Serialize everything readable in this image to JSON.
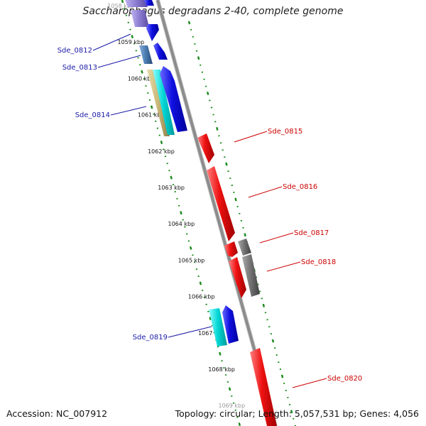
{
  "title": "Saccharophagus degradans 2-40, complete genome",
  "footer": {
    "accession": "Accession: NC_007912",
    "summary": "Topology: circular; Length: 5,057,531 bp; Genes: 4,056"
  },
  "kbp_labels": [
    "1058 kbp",
    "1059 kbp",
    "1060 kbp",
    "1061 kbp",
    "1062 kbp",
    "1063 kbp",
    "1064 kbp",
    "1065 kbp",
    "1066 kbp",
    "1067 kbp",
    "1068 kbp",
    "1069 kbp"
  ],
  "genes": {
    "left": [
      {
        "label": "Sde_0812"
      },
      {
        "label": "Sde_0813"
      },
      {
        "label": "Sde_0814"
      },
      {
        "label": "Sde_0819"
      }
    ],
    "right": [
      {
        "label": "Sde_0815"
      },
      {
        "label": "Sde_0816"
      },
      {
        "label": "Sde_0817"
      },
      {
        "label": "Sde_0818"
      },
      {
        "label": "Sde_0820"
      }
    ]
  },
  "colors": {
    "backbone": "#8c8c8c",
    "tick": "#1a8a1a",
    "left_label": "#1a1aa8",
    "right_label": "#cc0000",
    "forward_blue": "#1010e0",
    "cyan": "#00d4d4",
    "tan": "#c8b878",
    "steel": "#4a7ab0",
    "lavender": "#8a7ad0",
    "red": "#ee1111",
    "gray": "#707070"
  }
}
